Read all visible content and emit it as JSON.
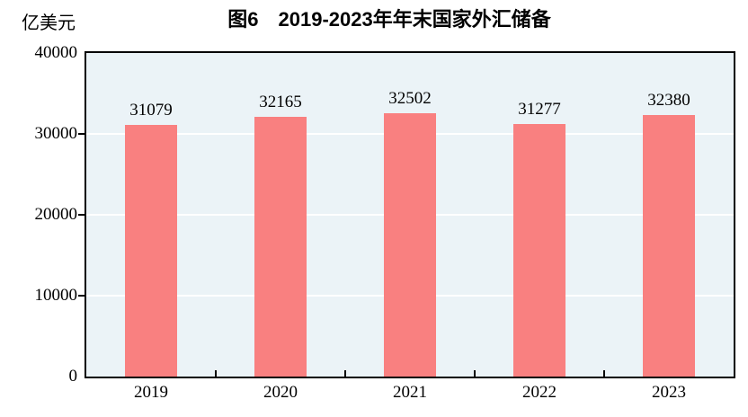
{
  "figure": {
    "title": "图6　2019-2023年年末国家外汇储备",
    "unit_label": "亿美元"
  },
  "chart_data": {
    "type": "bar",
    "title": "图6　2019-2023年年末国家外汇储备",
    "ylabel": "亿美元",
    "xlabel": "",
    "categories": [
      "2019",
      "2020",
      "2021",
      "2022",
      "2023"
    ],
    "values": [
      31079,
      32165,
      32502,
      31277,
      32380
    ],
    "data_labels": [
      "31079",
      "32165",
      "32502",
      "31277",
      "32380"
    ],
    "ylim": [
      0,
      40000
    ],
    "ytick_interval": 10000,
    "yticks": [
      0,
      10000,
      20000,
      30000,
      40000
    ],
    "ytick_labels": [
      "0",
      "10000",
      "20000",
      "30000",
      "40000"
    ],
    "grid": "horizontal white gridlines",
    "legend": "none",
    "colors": {
      "bar": "#F98080",
      "plot_background": "#EBF3F7",
      "gridline": "#FFFFFF",
      "axis": "#000000",
      "text": "#000000",
      "page_background": "#FFFFFF"
    }
  }
}
